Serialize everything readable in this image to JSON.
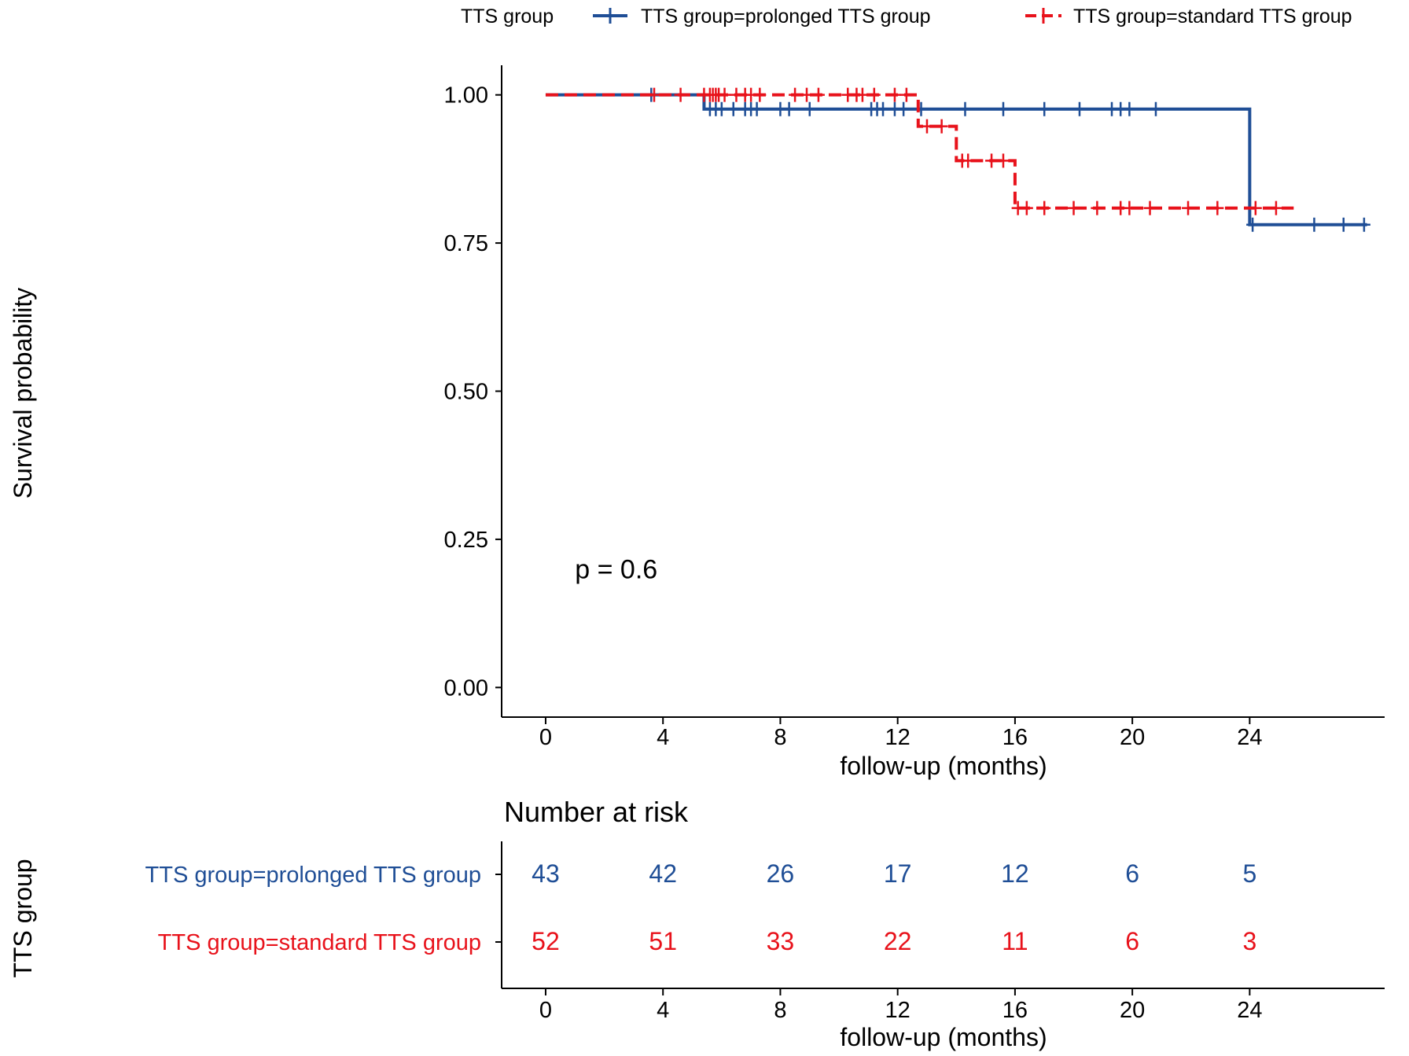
{
  "chart_data": {
    "type": "line",
    "subtype": "kaplan-meier",
    "title": "",
    "legend": {
      "title": "TTS group",
      "position": "top",
      "entries": [
        "TTS group=prolonged TTS group",
        "TTS group=standard TTS group"
      ]
    },
    "ylabel": "Survival probability",
    "xlabel": "follow-up (months)",
    "xlim": [
      -1.5,
      28.6
    ],
    "ylim": [
      -0.05,
      1.05
    ],
    "xticks": [
      0,
      4,
      8,
      12,
      16,
      20,
      24
    ],
    "xtick_labels": [
      "0",
      "4",
      "8",
      "12",
      "16",
      "20",
      "24"
    ],
    "yticks": [
      0,
      0.25,
      0.5,
      0.75,
      1.0
    ],
    "ytick_labels": [
      "0.00",
      "0.25",
      "0.50",
      "0.75",
      "1.00"
    ],
    "annotation": "p = 0.6",
    "annotation_pos": {
      "x": 1.0,
      "y": 0.2
    },
    "series": [
      {
        "name": "TTS group=prolonged TTS group",
        "color": "#1f4e96",
        "dash": "solid",
        "steps": [
          [
            0,
            1.0
          ],
          [
            5.4,
            0.976
          ],
          [
            24.0,
            0.781
          ],
          [
            28.0,
            0.781
          ]
        ],
        "censor": [
          [
            3.6,
            1.0
          ],
          [
            5.6,
            0.976
          ],
          [
            5.8,
            0.976
          ],
          [
            6.0,
            0.976
          ],
          [
            6.4,
            0.976
          ],
          [
            6.8,
            0.976
          ],
          [
            7.0,
            0.976
          ],
          [
            7.2,
            0.976
          ],
          [
            8.0,
            0.976
          ],
          [
            8.3,
            0.976
          ],
          [
            9.0,
            0.976
          ],
          [
            11.1,
            0.976
          ],
          [
            11.3,
            0.976
          ],
          [
            11.5,
            0.976
          ],
          [
            11.9,
            0.976
          ],
          [
            12.2,
            0.976
          ],
          [
            12.8,
            0.976
          ],
          [
            14.3,
            0.976
          ],
          [
            15.6,
            0.976
          ],
          [
            17.0,
            0.976
          ],
          [
            18.2,
            0.976
          ],
          [
            19.3,
            0.976
          ],
          [
            19.6,
            0.976
          ],
          [
            19.9,
            0.976
          ],
          [
            20.8,
            0.976
          ],
          [
            24.1,
            0.781
          ],
          [
            26.2,
            0.781
          ],
          [
            27.2,
            0.781
          ],
          [
            27.9,
            0.781
          ]
        ]
      },
      {
        "name": "TTS group=standard TTS group",
        "color": "#e8121b",
        "dash": "dashed",
        "steps": [
          [
            0,
            1.0
          ],
          [
            12.7,
            0.947
          ],
          [
            14.0,
            0.889
          ],
          [
            16.0,
            0.809
          ],
          [
            25.5,
            0.809
          ]
        ],
        "censor": [
          [
            3.7,
            1.0
          ],
          [
            4.6,
            1.0
          ],
          [
            5.4,
            1.0
          ],
          [
            5.6,
            1.0
          ],
          [
            5.7,
            1.0
          ],
          [
            5.8,
            1.0
          ],
          [
            5.9,
            1.0
          ],
          [
            6.1,
            1.0
          ],
          [
            6.5,
            1.0
          ],
          [
            6.8,
            1.0
          ],
          [
            7.0,
            1.0
          ],
          [
            7.3,
            1.0
          ],
          [
            8.5,
            1.0
          ],
          [
            8.9,
            1.0
          ],
          [
            9.3,
            1.0
          ],
          [
            10.3,
            1.0
          ],
          [
            10.6,
            1.0
          ],
          [
            10.8,
            1.0
          ],
          [
            11.2,
            1.0
          ],
          [
            11.9,
            1.0
          ],
          [
            12.3,
            1.0
          ],
          [
            13.0,
            0.947
          ],
          [
            13.5,
            0.947
          ],
          [
            14.2,
            0.889
          ],
          [
            14.4,
            0.889
          ],
          [
            15.2,
            0.889
          ],
          [
            15.6,
            0.889
          ],
          [
            16.1,
            0.809
          ],
          [
            16.4,
            0.809
          ],
          [
            17.0,
            0.809
          ],
          [
            18.0,
            0.809
          ],
          [
            18.8,
            0.809
          ],
          [
            19.6,
            0.809
          ],
          [
            19.9,
            0.809
          ],
          [
            20.6,
            0.809
          ],
          [
            21.9,
            0.809
          ],
          [
            22.9,
            0.809
          ],
          [
            24.2,
            0.809
          ],
          [
            24.9,
            0.809
          ]
        ]
      }
    ],
    "risk_table": {
      "title": "Number at risk",
      "group_label": "TTS group",
      "xlabel": "follow-up (months)",
      "xticks": [
        0,
        4,
        8,
        12,
        16,
        20,
        24
      ],
      "xtick_labels": [
        "0",
        "4",
        "8",
        "12",
        "16",
        "20",
        "24"
      ],
      "rows": [
        {
          "label": "TTS group=prolonged TTS group",
          "color": "#1f4e96",
          "values": [
            43,
            42,
            26,
            17,
            12,
            6,
            5
          ]
        },
        {
          "label": "TTS group=standard TTS group",
          "color": "#e8121b",
          "values": [
            52,
            51,
            33,
            22,
            11,
            6,
            3
          ]
        }
      ]
    }
  }
}
